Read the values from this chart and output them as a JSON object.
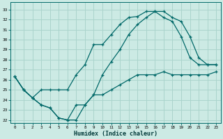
{
  "title": "",
  "xlabel": "Humidex (Indice chaleur)",
  "ylabel": "",
  "bg_color": "#cceae4",
  "grid_color": "#aad4cc",
  "line_color": "#006868",
  "xlim": [
    -0.5,
    23.5
  ],
  "ylim": [
    21.7,
    33.7
  ],
  "yticks": [
    22,
    23,
    24,
    25,
    26,
    27,
    28,
    29,
    30,
    31,
    32,
    33
  ],
  "xticks": [
    0,
    1,
    2,
    3,
    4,
    5,
    6,
    7,
    8,
    9,
    10,
    11,
    12,
    13,
    14,
    15,
    16,
    17,
    18,
    19,
    20,
    21,
    22,
    23
  ],
  "line1_x": [
    0,
    1,
    2,
    3,
    4,
    5,
    6,
    7,
    8,
    9,
    10,
    11,
    12,
    13,
    14,
    15,
    16,
    17,
    18,
    19,
    20,
    21,
    22,
    23
  ],
  "line1_y": [
    26.3,
    25.0,
    24.2,
    23.5,
    23.2,
    22.2,
    22.0,
    22.0,
    23.5,
    24.5,
    24.5,
    25.0,
    25.5,
    26.0,
    26.5,
    26.5,
    26.5,
    26.8,
    26.5,
    26.5,
    26.5,
    26.5,
    26.5,
    26.8
  ],
  "line2_x": [
    0,
    1,
    2,
    3,
    4,
    5,
    6,
    7,
    8,
    9,
    10,
    11,
    12,
    13,
    14,
    15,
    16,
    17,
    18,
    19,
    20,
    21,
    22,
    23
  ],
  "line2_y": [
    26.3,
    25.0,
    24.2,
    25.0,
    25.0,
    25.0,
    25.0,
    26.5,
    27.5,
    29.5,
    29.5,
    30.5,
    31.5,
    32.2,
    32.3,
    32.8,
    32.8,
    32.2,
    31.8,
    30.3,
    28.2,
    27.5,
    27.5,
    27.5
  ],
  "line3_x": [
    0,
    1,
    2,
    3,
    4,
    5,
    6,
    7,
    8,
    9,
    10,
    11,
    12,
    13,
    14,
    15,
    16,
    17,
    18,
    19,
    20,
    21,
    22,
    23
  ],
  "line3_y": [
    26.3,
    25.0,
    24.2,
    23.5,
    23.2,
    22.2,
    22.0,
    23.5,
    23.5,
    24.5,
    26.5,
    27.8,
    29.0,
    30.5,
    31.5,
    32.2,
    32.8,
    32.8,
    32.2,
    31.8,
    30.3,
    28.2,
    27.5,
    27.5
  ]
}
